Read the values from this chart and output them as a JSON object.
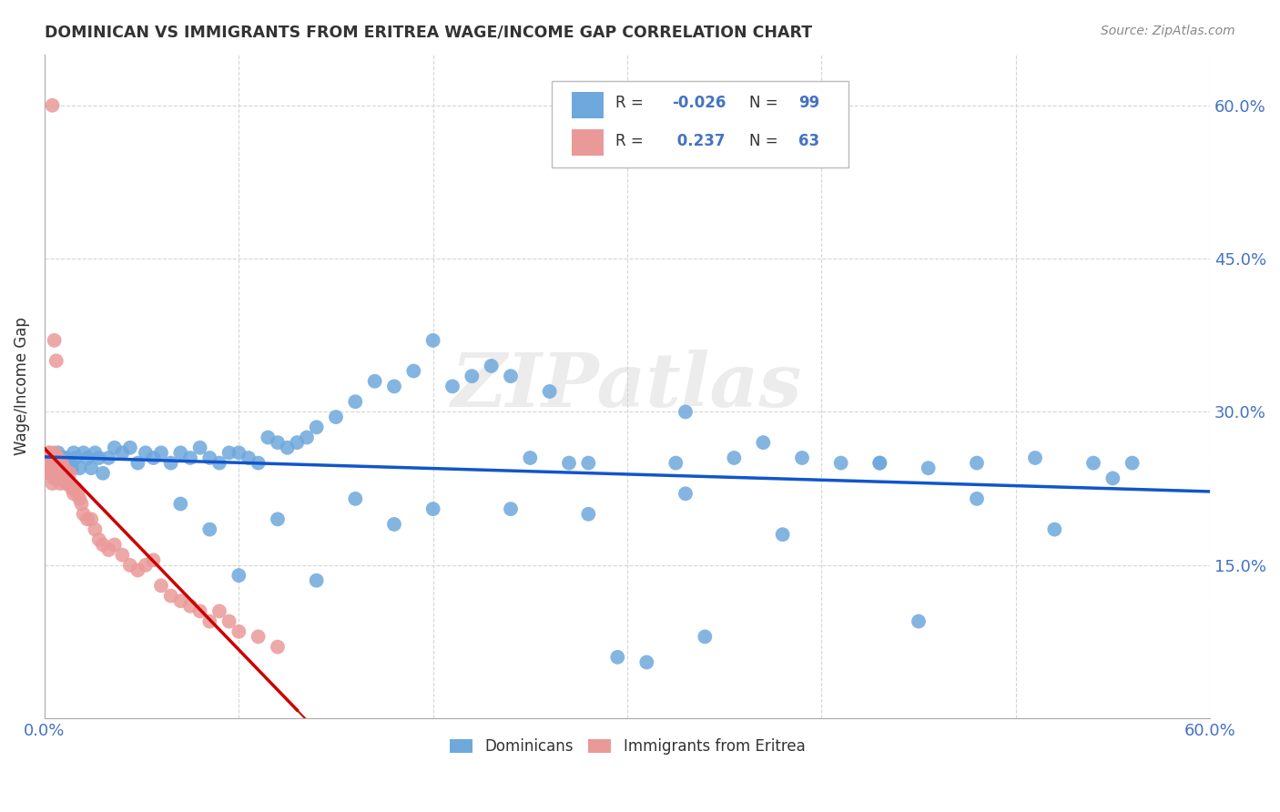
{
  "title": "DOMINICAN VS IMMIGRANTS FROM ERITREA WAGE/INCOME GAP CORRELATION CHART",
  "source": "Source: ZipAtlas.com",
  "ylabel": "Wage/Income Gap",
  "xlim": [
    0.0,
    0.6
  ],
  "ylim": [
    0.0,
    0.65
  ],
  "xticks": [
    0.0,
    0.1,
    0.2,
    0.3,
    0.4,
    0.5,
    0.6
  ],
  "xticklabels": [
    "0.0%",
    "",
    "",
    "",
    "",
    "",
    "60.0%"
  ],
  "ytick_positions": [
    0.15,
    0.3,
    0.45,
    0.6
  ],
  "ytick_labels": [
    "15.0%",
    "30.0%",
    "45.0%",
    "60.0%"
  ],
  "legend_r_dom": "-0.026",
  "legend_n_dom": "99",
  "legend_r_eri": "0.237",
  "legend_n_eri": "63",
  "blue_color": "#6fa8dc",
  "pink_color": "#ea9999",
  "trendline_blue_color": "#1155cc",
  "trendline_pink_color": "#cc0000",
  "background_color": "#ffffff",
  "watermark": "ZIPatlas",
  "axis_color": "#4472c4",
  "label_color": "#333333",
  "grid_color": "#cccccc",
  "dom_x": [
    0.003,
    0.004,
    0.004,
    0.005,
    0.005,
    0.006,
    0.006,
    0.007,
    0.007,
    0.007,
    0.008,
    0.008,
    0.009,
    0.009,
    0.01,
    0.01,
    0.011,
    0.012,
    0.013,
    0.014,
    0.015,
    0.016,
    0.018,
    0.02,
    0.022,
    0.024,
    0.026,
    0.028,
    0.03,
    0.033,
    0.036,
    0.04,
    0.044,
    0.048,
    0.052,
    0.056,
    0.06,
    0.065,
    0.07,
    0.075,
    0.08,
    0.085,
    0.09,
    0.095,
    0.1,
    0.105,
    0.11,
    0.115,
    0.12,
    0.125,
    0.13,
    0.135,
    0.14,
    0.15,
    0.16,
    0.17,
    0.18,
    0.19,
    0.2,
    0.21,
    0.22,
    0.23,
    0.24,
    0.25,
    0.26,
    0.27,
    0.28,
    0.295,
    0.31,
    0.325,
    0.34,
    0.355,
    0.37,
    0.39,
    0.41,
    0.43,
    0.455,
    0.48,
    0.51,
    0.54,
    0.07,
    0.085,
    0.1,
    0.12,
    0.14,
    0.16,
    0.18,
    0.2,
    0.24,
    0.28,
    0.33,
    0.38,
    0.43,
    0.48,
    0.52,
    0.55,
    0.33,
    0.45,
    0.56
  ],
  "dom_y": [
    0.255,
    0.25,
    0.245,
    0.255,
    0.24,
    0.255,
    0.245,
    0.26,
    0.245,
    0.235,
    0.25,
    0.24,
    0.255,
    0.245,
    0.25,
    0.24,
    0.255,
    0.245,
    0.25,
    0.245,
    0.26,
    0.255,
    0.245,
    0.26,
    0.255,
    0.245,
    0.26,
    0.255,
    0.24,
    0.255,
    0.265,
    0.26,
    0.265,
    0.25,
    0.26,
    0.255,
    0.26,
    0.25,
    0.26,
    0.255,
    0.265,
    0.255,
    0.25,
    0.26,
    0.26,
    0.255,
    0.25,
    0.275,
    0.27,
    0.265,
    0.27,
    0.275,
    0.285,
    0.295,
    0.31,
    0.33,
    0.325,
    0.34,
    0.37,
    0.325,
    0.335,
    0.345,
    0.335,
    0.255,
    0.32,
    0.25,
    0.25,
    0.06,
    0.055,
    0.25,
    0.08,
    0.255,
    0.27,
    0.255,
    0.25,
    0.25,
    0.245,
    0.25,
    0.255,
    0.25,
    0.21,
    0.185,
    0.14,
    0.195,
    0.135,
    0.215,
    0.19,
    0.205,
    0.205,
    0.2,
    0.22,
    0.18,
    0.25,
    0.215,
    0.185,
    0.235,
    0.3,
    0.095,
    0.25
  ],
  "eri_x": [
    0.001,
    0.001,
    0.002,
    0.002,
    0.002,
    0.003,
    0.003,
    0.003,
    0.004,
    0.004,
    0.004,
    0.005,
    0.005,
    0.005,
    0.006,
    0.006,
    0.006,
    0.007,
    0.007,
    0.007,
    0.008,
    0.008,
    0.008,
    0.009,
    0.009,
    0.01,
    0.01,
    0.011,
    0.012,
    0.013,
    0.014,
    0.015,
    0.016,
    0.017,
    0.018,
    0.019,
    0.02,
    0.022,
    0.024,
    0.026,
    0.028,
    0.03,
    0.033,
    0.036,
    0.04,
    0.044,
    0.048,
    0.052,
    0.056,
    0.06,
    0.065,
    0.07,
    0.075,
    0.08,
    0.085,
    0.09,
    0.095,
    0.1,
    0.11,
    0.12,
    0.004,
    0.005,
    0.006
  ],
  "eri_y": [
    0.255,
    0.245,
    0.26,
    0.25,
    0.24,
    0.26,
    0.25,
    0.24,
    0.25,
    0.24,
    0.23,
    0.26,
    0.25,
    0.235,
    0.255,
    0.245,
    0.235,
    0.255,
    0.245,
    0.235,
    0.25,
    0.24,
    0.23,
    0.25,
    0.235,
    0.245,
    0.235,
    0.23,
    0.23,
    0.24,
    0.225,
    0.22,
    0.225,
    0.22,
    0.215,
    0.21,
    0.2,
    0.195,
    0.195,
    0.185,
    0.175,
    0.17,
    0.165,
    0.17,
    0.16,
    0.15,
    0.145,
    0.15,
    0.155,
    0.13,
    0.12,
    0.115,
    0.11,
    0.105,
    0.095,
    0.105,
    0.095,
    0.085,
    0.08,
    0.07,
    0.6,
    0.37,
    0.35
  ]
}
